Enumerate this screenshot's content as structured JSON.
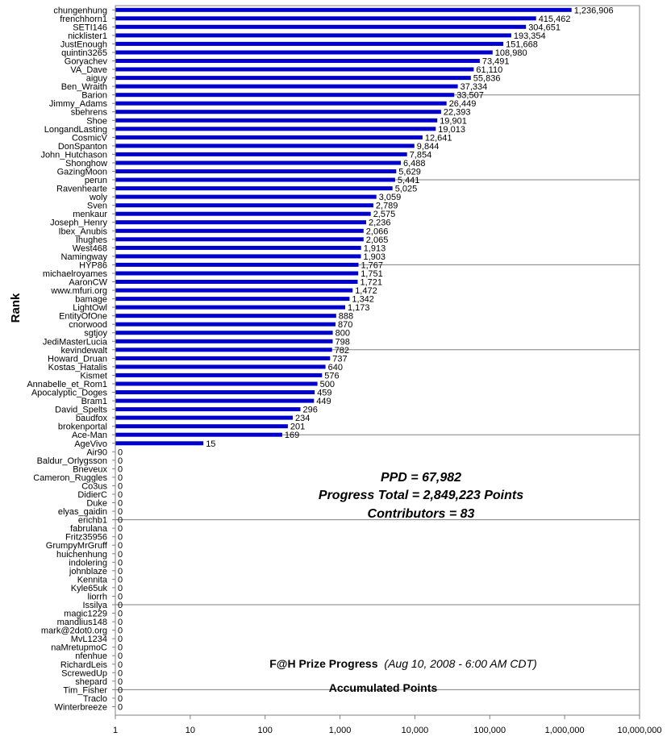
{
  "chart_data": {
    "type": "bar",
    "orientation": "horizontal",
    "x_scale": "log",
    "xlim": [
      1,
      10000000
    ],
    "x_ticks": [
      "1",
      "10",
      "100",
      "1,000",
      "10,000",
      "100,000",
      "1,000,000",
      "10,000,000"
    ],
    "ylabel": "Rank",
    "xlabel": "Accumulated Points",
    "title_main": "F@H Prize Progress",
    "title_sub": "(Aug 10, 2008 - 6:00 AM CDT)",
    "bar_color": "#0000cc",
    "grid": "horizontal",
    "stats": [
      "PPD = 67,982",
      "Progress Total = 2,849,223 Points",
      "Contributors = 83"
    ],
    "categories": [
      "chungenhung",
      "frenchhorn1",
      "SETI146",
      "nicklister1",
      "JustEnough",
      "quintin3265",
      "Goryachev",
      "VA_Dave",
      "aiguy",
      "Ben_Wraith",
      "Barion",
      "Jimmy_Adams",
      "sbehrens",
      "Shoe",
      "LongandLasting",
      "CosmicV",
      "DonSpanton",
      "John_Hutchason",
      "Shonghow",
      "GazingMoon",
      "perun",
      "Ravenhearte",
      "woly",
      "Sven",
      "menkaur",
      "Joseph_Henry",
      "Ibex_Anubis",
      "Ihughes",
      "West468",
      "Namingway",
      "HYP86",
      "michaelroyames",
      "AaronCW",
      "www.mfuri.org",
      "bamage",
      "LightOwl",
      "EntityOfOne",
      "cnorwood",
      "sgtjoy",
      "JediMasterLucia",
      "kevindewalt",
      "Howard_Druan",
      "Kostas_Hatalis",
      "Kismet",
      "Annabelle_et_Rom1",
      "Apocalyptic_Doges",
      "Bram1",
      "David_Spelts",
      "baudfox",
      "brokenportal",
      "Ace-Man",
      "AgeVivo",
      "Air90",
      "Baldur_Orlygsson",
      "Bneveux",
      "Cameron_Ruggles",
      "Co3us",
      "DidierC",
      "Duke",
      "elyas_gaidin",
      "erichb1",
      "fabrulana",
      "Fritz35956",
      "GrumpyMrGruff",
      "huichenhung",
      "indolering",
      "johnblaze",
      "Kennita",
      "Kyle65uk",
      "liorrh",
      "Issilya",
      "magic1229",
      "mandlius148",
      "mark@2dot0.org",
      "MvL1234",
      "naMretupmoC",
      "nfenhue",
      "RichardLeis",
      "ScrewedUp",
      "shepard",
      "Tim_Fisher",
      "Traclo",
      "Winterbreeze"
    ],
    "values": [
      1236906,
      415462,
      304651,
      193354,
      151668,
      108980,
      73491,
      61110,
      55836,
      37334,
      33507,
      26449,
      22393,
      19901,
      19013,
      12641,
      9844,
      7854,
      6488,
      5629,
      5441,
      5025,
      3059,
      2789,
      2575,
      2236,
      2066,
      2065,
      1913,
      1903,
      1767,
      1751,
      1721,
      1472,
      1342,
      1173,
      888,
      870,
      800,
      798,
      782,
      737,
      640,
      576,
      500,
      459,
      449,
      296,
      234,
      201,
      169,
      15,
      0,
      0,
      0,
      0,
      0,
      0,
      0,
      0,
      0,
      0,
      0,
      0,
      0,
      0,
      0,
      0,
      0,
      0,
      0,
      0,
      0,
      0,
      0,
      0,
      0,
      0,
      0,
      0,
      0,
      0,
      0
    ],
    "value_labels": [
      "1,236,906",
      "415,462",
      "304,651",
      "193,354",
      "151,668",
      "108,980",
      "73,491",
      "61,110",
      "55,836",
      "37,334",
      "33,507",
      "26,449",
      "22,393",
      "19,901",
      "19,013",
      "12,641",
      "9,844",
      "7,854",
      "6,488",
      "5,629",
      "5,441",
      "5,025",
      "3,059",
      "2,789",
      "2,575",
      "2,236",
      "2,066",
      "2,065",
      "1,913",
      "1,903",
      "1,767",
      "1,751",
      "1,721",
      "1,472",
      "1,342",
      "1,173",
      "888",
      "870",
      "800",
      "798",
      "782",
      "737",
      "640",
      "576",
      "500",
      "459",
      "449",
      "296",
      "234",
      "201",
      "169",
      "15",
      "0",
      "0",
      "0",
      "0",
      "0",
      "0",
      "0",
      "0",
      "0",
      "0",
      "0",
      "0",
      "0",
      "0",
      "0",
      "0",
      "0",
      "0",
      "0",
      "0",
      "0",
      "0",
      "0",
      "0",
      "0",
      "0",
      "0",
      "0",
      "0",
      "0",
      "0"
    ]
  }
}
